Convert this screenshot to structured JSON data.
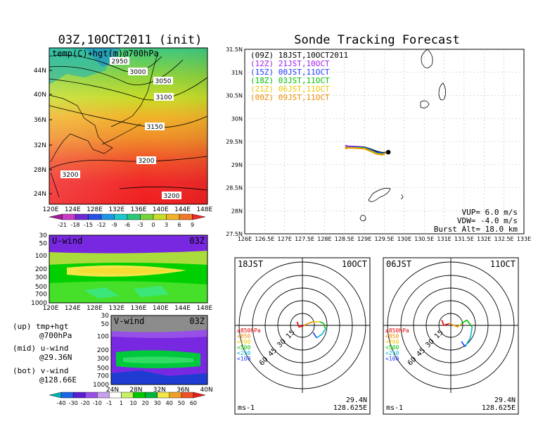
{
  "titles": {
    "left": "03Z,10OCT2011 (init)",
    "right": "Sonde Tracking Forecast"
  },
  "map_panel": {
    "label": "temp(C)+hgt(m)@700hPa",
    "lon_ticks": [
      "120E",
      "124E",
      "128E",
      "132E",
      "136E",
      "140E",
      "144E",
      "148E"
    ],
    "lat_ticks": [
      "44N",
      "40N",
      "36N",
      "32N",
      "28N",
      "24N"
    ],
    "contour_labels": [
      "2950",
      "3000",
      "3050",
      "3100",
      "3150",
      "3200",
      "3200",
      "3200"
    ],
    "colorbar": [
      "-21",
      "-18",
      "-15",
      "-12",
      "-9",
      "-6",
      "-3",
      "0",
      "3",
      "6",
      "9"
    ]
  },
  "u_panel": {
    "label": "U-wind",
    "time": "03Z",
    "p_ticks": [
      "30",
      "50",
      "100",
      "200",
      "300",
      "500",
      "700",
      "1000"
    ],
    "lon_ticks": [
      "120E",
      "124E",
      "128E",
      "132E",
      "136E",
      "140E",
      "144E",
      "148E"
    ]
  },
  "v_panel": {
    "label": "V-wind",
    "time": "03Z",
    "p_ticks": [
      "30",
      "50",
      "100",
      "200",
      "300",
      "500",
      "700",
      "1000"
    ],
    "lat_ticks": [
      "24N",
      "28N",
      "32N",
      "36N",
      "40N"
    ],
    "colorbar": [
      "-40",
      "-30",
      "-20",
      "-10",
      "-1",
      "1",
      "10",
      "20",
      "30",
      "40",
      "50",
      "60"
    ]
  },
  "notes": {
    "line1a": "(up) tmp+hgt",
    "line1b": "@700hPa",
    "line2a": "(mid) u-wind",
    "line2b": "@29.36N",
    "line3a": "(bot) v-wind",
    "line3b": "@128.66E"
  },
  "track_panel": {
    "lat_ticks": [
      "31.5N",
      "31N",
      "30.5N",
      "30N",
      "29.5N",
      "29N",
      "28.5N",
      "28N",
      "27.5N"
    ],
    "lon_ticks": [
      "126E",
      "126.5E",
      "127E",
      "127.5E",
      "128E",
      "128.5E",
      "129E",
      "129.5E",
      "130E",
      "130.5E",
      "131E",
      "131.5E",
      "132E",
      "132.5E",
      "133E"
    ],
    "legend": [
      {
        "text": "(09Z)  18JST,10OCT2011",
        "color": "#000000"
      },
      {
        "text": "(12Z)  21JST,10OCT",
        "color": "#a020f0"
      },
      {
        "text": "(15Z)  00JST,11OCT",
        "color": "#1e3cff"
      },
      {
        "text": "(18Z)  03JST,11OCT",
        "color": "#00c000"
      },
      {
        "text": "(21Z)  06JST,11OCT",
        "color": "#f0c800"
      },
      {
        "text": "(00Z)  09JST,11OCT",
        "color": "#f08c00"
      }
    ],
    "vup": "VUP=  6.0  m/s",
    "vdw": "VDW=  -4.0  m/s",
    "burst": "Burst Alt=  18.0  km"
  },
  "chart_data": [
    {
      "type": "line",
      "title": "Sonde Tracking Forecast",
      "xlim": [
        126,
        133
      ],
      "ylim": [
        27.5,
        31.5
      ],
      "launch": {
        "lon": 129.6,
        "lat": 29.27
      },
      "series": [
        {
          "name": "(09Z) 18JST,10OCT2011",
          "color": "#000000",
          "lon": [
            129.6,
            129.45,
            129.3,
            129.15,
            129.0,
            128.85,
            128.65,
            128.55
          ],
          "lat": [
            29.27,
            29.26,
            29.29,
            29.34,
            29.38,
            29.39,
            29.39,
            29.39
          ]
        },
        {
          "name": "(12Z) 21JST,10OCT",
          "color": "#a020f0",
          "lon": [
            129.6,
            129.45,
            129.3,
            129.15,
            129.0,
            128.85,
            128.65,
            128.55
          ],
          "lat": [
            29.27,
            29.24,
            29.26,
            29.32,
            29.37,
            29.39,
            29.4,
            29.4
          ]
        },
        {
          "name": "(15Z) 00JST,11OCT",
          "color": "#1e3cff",
          "lon": [
            129.6,
            129.45,
            129.3,
            129.15,
            129.0,
            128.85,
            128.65,
            128.55
          ],
          "lat": [
            29.27,
            29.25,
            29.27,
            29.33,
            29.37,
            29.38,
            29.38,
            29.38
          ]
        },
        {
          "name": "(18Z) 03JST,11OCT",
          "color": "#00c000",
          "lon": [
            129.6,
            129.45,
            129.3,
            129.15,
            129.0,
            128.85,
            128.65,
            128.55
          ],
          "lat": [
            29.27,
            29.23,
            29.25,
            29.31,
            29.36,
            29.37,
            29.37,
            29.37
          ]
        },
        {
          "name": "(21Z) 06JST,11OCT",
          "color": "#f0c800",
          "lon": [
            129.6,
            129.45,
            129.3,
            129.15,
            129.0,
            128.85,
            128.65,
            128.55
          ],
          "lat": [
            29.27,
            29.22,
            29.24,
            29.3,
            29.35,
            29.36,
            29.37,
            29.37
          ]
        },
        {
          "name": "(00Z) 09JST,11OCT",
          "color": "#f08c00",
          "lon": [
            129.6,
            129.45,
            129.3,
            129.15,
            129.0,
            128.85,
            128.65,
            128.55
          ],
          "lat": [
            29.27,
            29.21,
            29.23,
            29.29,
            29.34,
            29.35,
            29.36,
            29.36
          ]
        }
      ]
    },
    {
      "type": "line",
      "title": "",
      "time_left": "18JST",
      "time_right": "10OCT",
      "rings": [
        "15",
        "30",
        "45",
        "60"
      ],
      "unit": "ms-1",
      "location": [
        "29.4N",
        "128.625E"
      ],
      "levels": [
        {
          "label": "≥850hPa",
          "color": "#e00000"
        },
        {
          "label": "<850",
          "color": "#f08c00"
        },
        {
          "label": "<700",
          "color": "#f0c800"
        },
        {
          "label": "<500",
          "color": "#00c000"
        },
        {
          "label": "<250",
          "color": "#00b4d2"
        },
        {
          "label": "<100",
          "color": "#1e3cff"
        }
      ],
      "hodograph": [
        [
          -3,
          2
        ],
        [
          -2,
          -1
        ],
        [
          1,
          0
        ],
        [
          3,
          1
        ],
        [
          6,
          2
        ],
        [
          10,
          2
        ],
        [
          12,
          1
        ],
        [
          13,
          -2
        ],
        [
          11,
          -5
        ],
        [
          8,
          -7
        ],
        [
          6,
          -4
        ]
      ]
    },
    {
      "type": "line",
      "title": "",
      "time_left": "06JST",
      "time_right": "11OCT",
      "rings": [
        "15",
        "30",
        "45",
        "60"
      ],
      "unit": "ms-1",
      "location": [
        "29.4N",
        "128.625E"
      ],
      "levels": [
        {
          "label": "≥850hPa",
          "color": "#e00000"
        },
        {
          "label": "<850",
          "color": "#f08c00"
        },
        {
          "label": "<700",
          "color": "#f0c800"
        },
        {
          "label": "<500",
          "color": "#00c000"
        },
        {
          "label": "<250",
          "color": "#00b4d2"
        },
        {
          "label": "<100",
          "color": "#1e3cff"
        }
      ],
      "hodograph": [
        [
          -5,
          3
        ],
        [
          -4,
          0
        ],
        [
          -1,
          1
        ],
        [
          2,
          0
        ],
        [
          4,
          -1
        ],
        [
          6,
          1
        ],
        [
          9,
          3
        ],
        [
          12,
          -1
        ],
        [
          11,
          -7
        ],
        [
          8,
          -12
        ],
        [
          6,
          -9
        ]
      ]
    }
  ]
}
